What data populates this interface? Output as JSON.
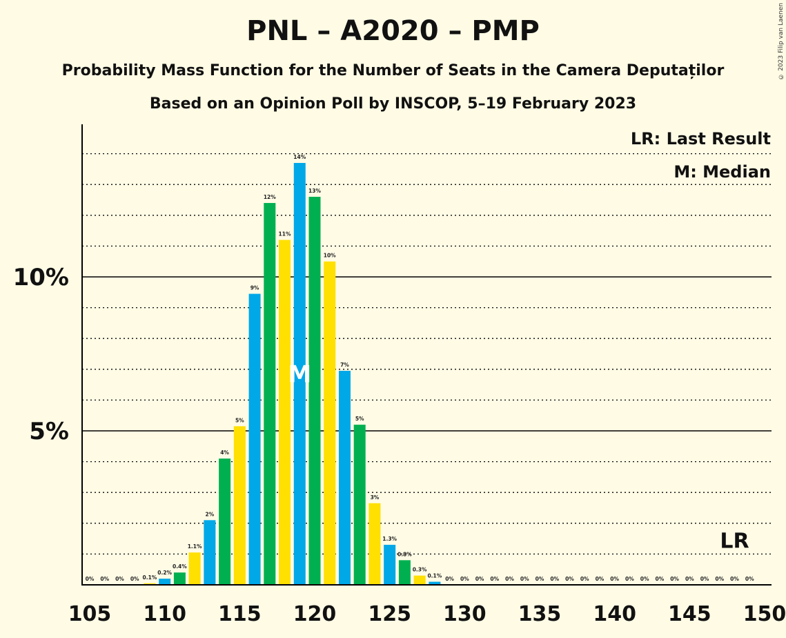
{
  "header": {
    "title": "PNL – A2020 – PMP",
    "subtitle1": "Probability Mass Function for the Number of Seats in the Camera Deputaților",
    "subtitle2": "Based on an Opinion Poll by INSCOP, 5–19 February 2023",
    "copyright": "© 2023 Filip van Laenen"
  },
  "chart_data": {
    "type": "bar",
    "x": [
      105,
      106,
      107,
      108,
      109,
      110,
      111,
      112,
      113,
      114,
      115,
      116,
      117,
      118,
      119,
      120,
      121,
      122,
      123,
      124,
      125,
      126,
      127,
      128,
      129,
      130,
      131,
      132,
      133,
      134,
      135,
      136,
      137,
      138,
      139,
      140,
      141,
      142,
      143,
      144,
      145,
      146,
      147,
      148,
      149,
      150
    ],
    "values": [
      0,
      0,
      0,
      0,
      0.05,
      0.2,
      0.4,
      1.05,
      2.1,
      4.1,
      5.15,
      9.45,
      12.4,
      11.2,
      13.7,
      12.6,
      10.5,
      6.95,
      5.2,
      2.65,
      1.3,
      0.8,
      0.3,
      0.1,
      0,
      0,
      0,
      0,
      0,
      0,
      0,
      0,
      0,
      0,
      0,
      0,
      0,
      0,
      0,
      0,
      0,
      0,
      0,
      0,
      0,
      0
    ],
    "labels": [
      "0%",
      "0%",
      "0%",
      "0%",
      "0.1%",
      "0.2%",
      "0.4%",
      "1.1%",
      "2%",
      "4%",
      "5%",
      "9%",
      "12%",
      "11%",
      "14%",
      "13%",
      "10%",
      "7%",
      "5%",
      "3%",
      "1.3%",
      "0.8%",
      "0.3%",
      "0.1%",
      "0%",
      "0%",
      "0%",
      "0%",
      "0%",
      "0%",
      "0%",
      "0%",
      "0%",
      "0%",
      "0%",
      "0%",
      "0%",
      "0%",
      "0%",
      "0%",
      "0%",
      "0%",
      "0%",
      "0%",
      "0%",
      ""
    ],
    "xticks": [
      105,
      110,
      115,
      120,
      125,
      130,
      135,
      140,
      145,
      150
    ],
    "xlabel": "",
    "ylabel": "",
    "yticks": [
      {
        "value": 5,
        "label": "5%"
      },
      {
        "value": 10,
        "label": "10%"
      }
    ],
    "ylim": [
      0,
      15
    ],
    "grid": "dotted every 1%, solid at 5% and 10%",
    "median": 119,
    "median_label": "M",
    "last_result": 148,
    "last_result_label": "LR",
    "legend": [
      "LR: Last Result",
      "M: Median"
    ],
    "legend_position": "top-right",
    "colors": [
      "#00B050",
      "#FFE000",
      "#00A8E8"
    ]
  }
}
